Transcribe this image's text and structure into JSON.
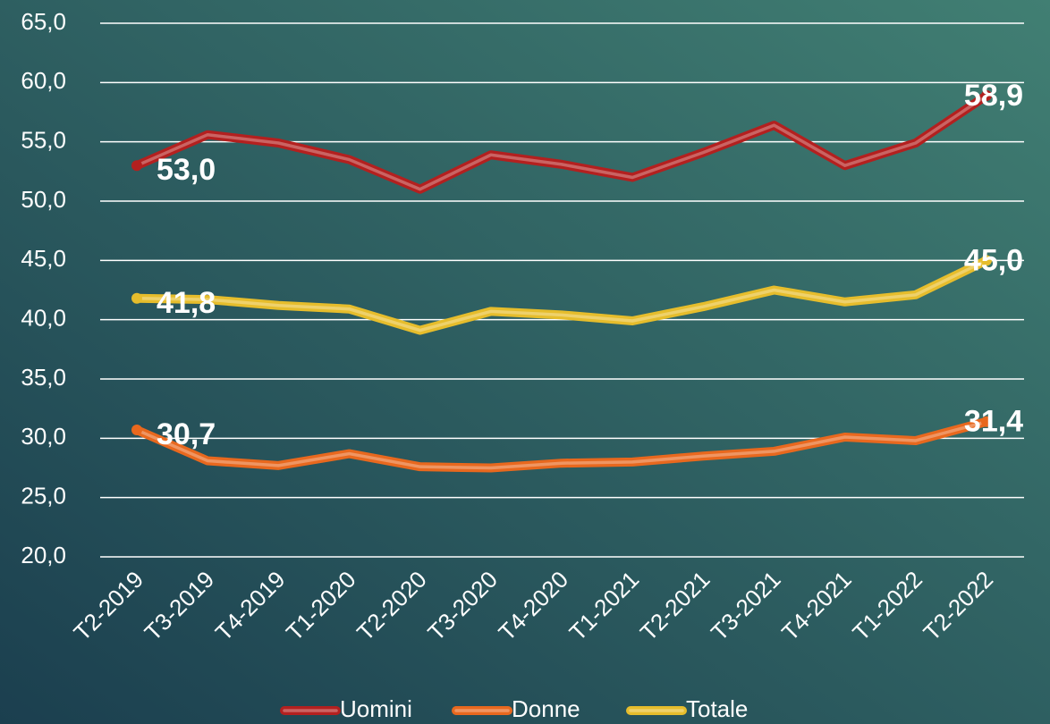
{
  "chart_data": {
    "type": "line",
    "categories": [
      "T2-2019",
      "T3-2019",
      "T4-2019",
      "T1-2020",
      "T2-2020",
      "T3-2020",
      "T4-2020",
      "T1-2021",
      "T2-2021",
      "T3-2021",
      "T4-2021",
      "T1-2022",
      "T2-2022"
    ],
    "series": [
      {
        "name": "Uomini",
        "color": "#b3201f",
        "values": [
          53.0,
          55.6,
          54.9,
          53.5,
          51.0,
          53.9,
          53.1,
          52.0,
          54.1,
          56.4,
          53.0,
          54.9,
          58.9
        ],
        "value_labels": [
          "53,0",
          null,
          null,
          null,
          null,
          null,
          null,
          null,
          null,
          null,
          null,
          null,
          "58,9"
        ]
      },
      {
        "name": "Donne",
        "color": "#e8681e",
        "values": [
          30.7,
          28.1,
          27.7,
          28.7,
          27.6,
          27.5,
          27.9,
          28.0,
          28.5,
          28.9,
          30.1,
          29.8,
          31.4
        ],
        "value_labels": [
          "30,7",
          null,
          null,
          null,
          null,
          null,
          null,
          null,
          null,
          null,
          null,
          null,
          "31,4"
        ]
      },
      {
        "name": "Totale",
        "color": "#e6bd2c",
        "values": [
          41.8,
          41.7,
          41.2,
          40.9,
          39.1,
          40.7,
          40.4,
          39.9,
          41.1,
          42.5,
          41.5,
          42.1,
          45.0
        ],
        "value_labels": [
          "41,8",
          null,
          null,
          null,
          null,
          null,
          null,
          null,
          null,
          null,
          null,
          null,
          "45,0"
        ]
      }
    ],
    "ylim": [
      20,
      65
    ],
    "yticks": [
      {
        "value": 20,
        "label": "20,0"
      },
      {
        "value": 25,
        "label": "25,0"
      },
      {
        "value": 30,
        "label": "30,0"
      },
      {
        "value": 35,
        "label": "35,0"
      },
      {
        "value": 40,
        "label": "40,0"
      },
      {
        "value": 45,
        "label": "45,0"
      },
      {
        "value": 50,
        "label": "50,0"
      },
      {
        "value": 55,
        "label": "55,0"
      },
      {
        "value": 60,
        "label": "60,0"
      },
      {
        "value": 65,
        "label": "65,0"
      }
    ],
    "grid": true,
    "legend": "bottom"
  }
}
